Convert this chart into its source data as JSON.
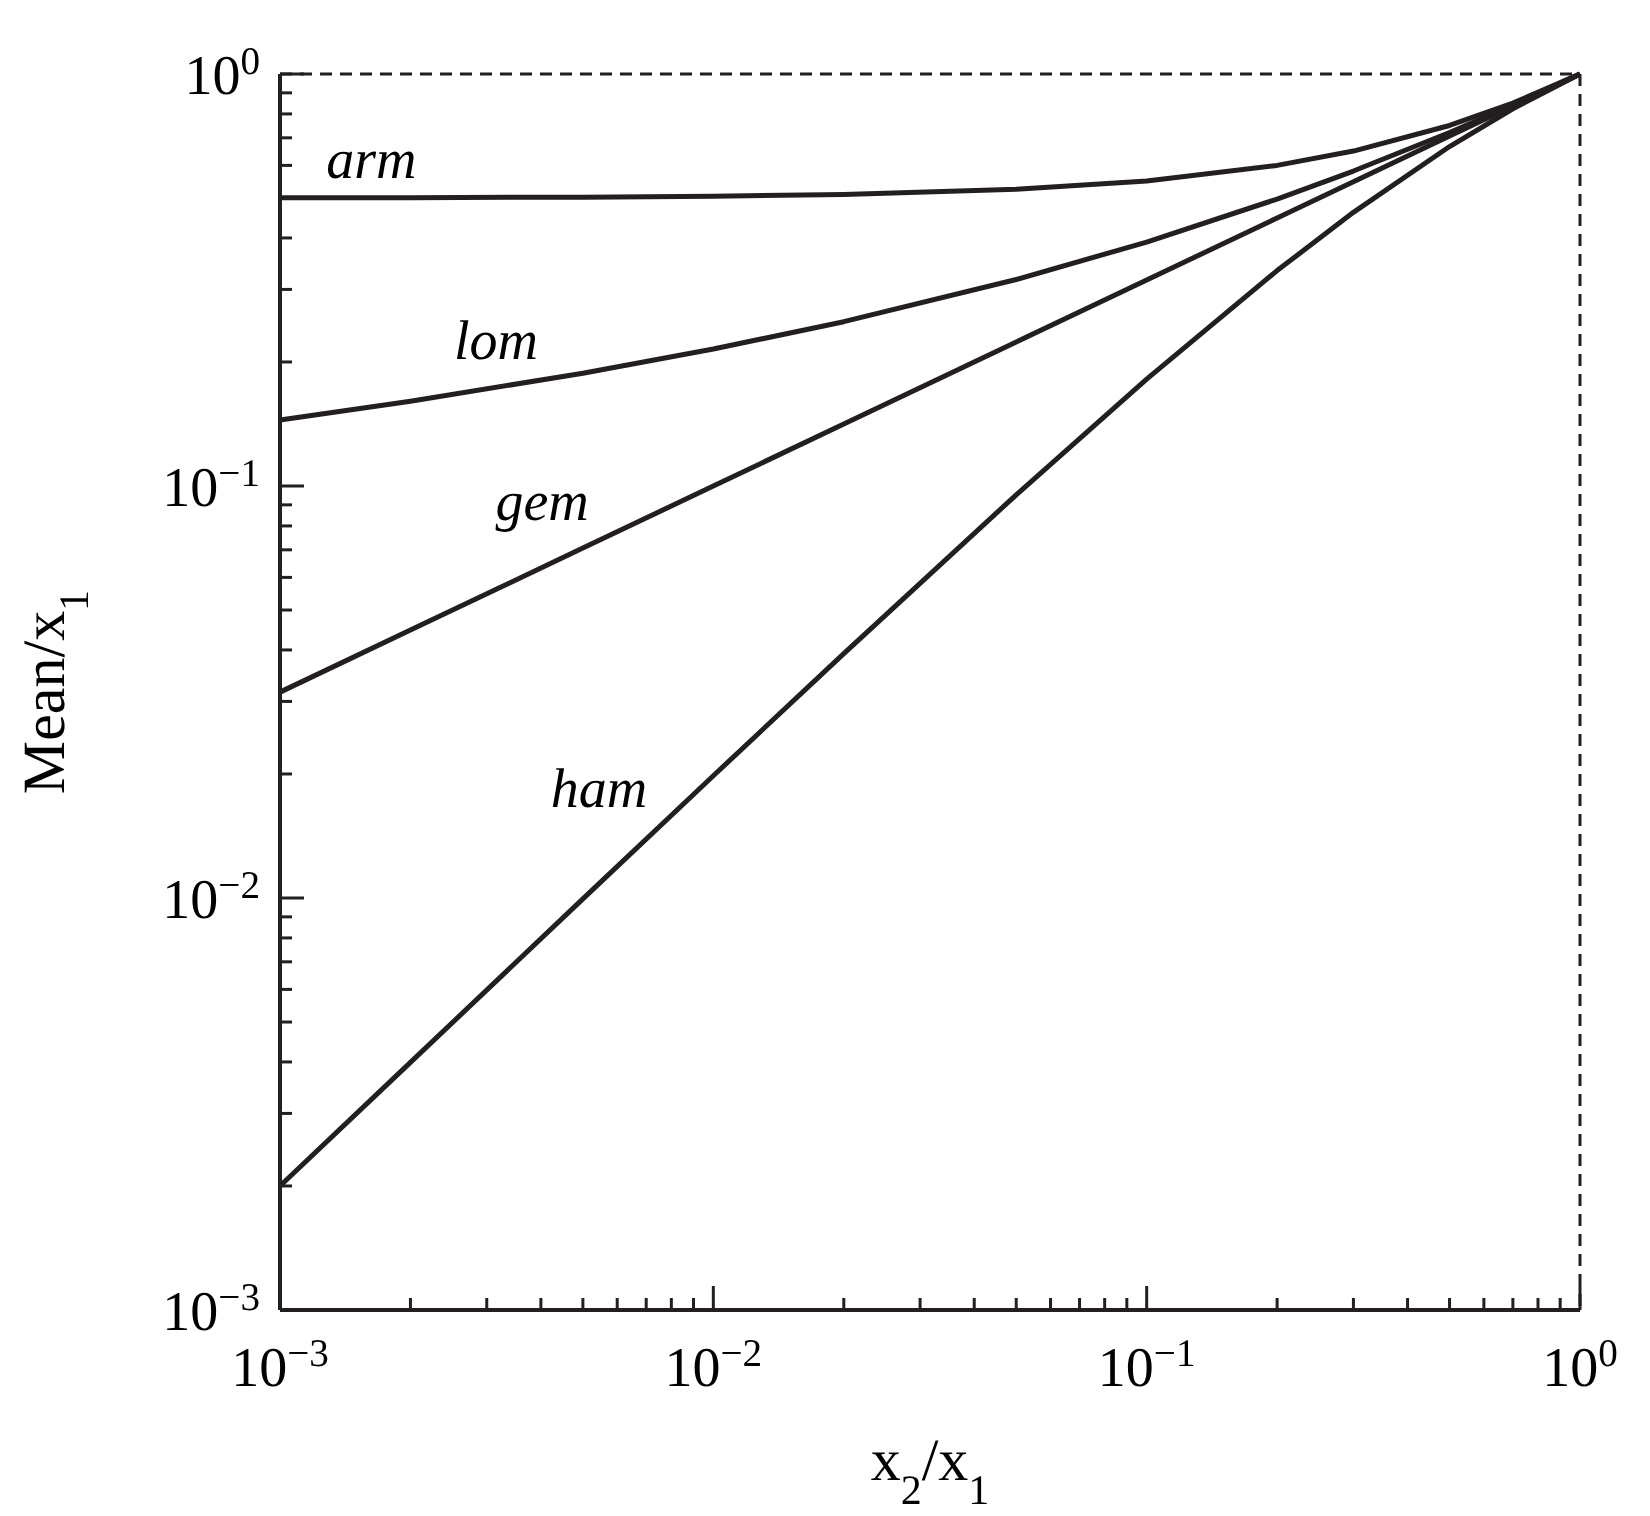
{
  "chart_data": {
    "type": "line",
    "xlabel": "x$_{2}$/x$_{1}$",
    "ylabel": "Mean/x$_{1}$",
    "log": "xy",
    "grid": false,
    "marker": "none",
    "line_style": "solid",
    "xlim": [
      0.001,
      1
    ],
    "ylim": [
      0.001,
      1
    ],
    "xticks": [
      {
        "value": 0.001,
        "label": "10$^{−3}$"
      },
      {
        "value": 0.002,
        "label": null
      },
      {
        "value": 0.003,
        "label": null
      },
      {
        "value": 0.004,
        "label": null
      },
      {
        "value": 0.005,
        "label": null
      },
      {
        "value": 0.006,
        "label": null
      },
      {
        "value": 0.007,
        "label": null
      },
      {
        "value": 0.008,
        "label": null
      },
      {
        "value": 0.009,
        "label": null
      },
      {
        "value": 0.01,
        "label": "10$^{−2}$"
      },
      {
        "value": 0.02,
        "label": null
      },
      {
        "value": 0.03,
        "label": null
      },
      {
        "value": 0.04,
        "label": null
      },
      {
        "value": 0.05,
        "label": null
      },
      {
        "value": 0.06,
        "label": null
      },
      {
        "value": 0.07,
        "label": null
      },
      {
        "value": 0.08,
        "label": null
      },
      {
        "value": 0.09,
        "label": null
      },
      {
        "value": 0.1,
        "label": "10$^{−1}$"
      },
      {
        "value": 0.2,
        "label": null
      },
      {
        "value": 0.3,
        "label": null
      },
      {
        "value": 0.4,
        "label": null
      },
      {
        "value": 0.5,
        "label": null
      },
      {
        "value": 0.6,
        "label": null
      },
      {
        "value": 0.7,
        "label": null
      },
      {
        "value": 0.8,
        "label": null
      },
      {
        "value": 0.9,
        "label": null
      },
      {
        "value": 1,
        "label": "10$^{0}$"
      }
    ],
    "yticks": [
      {
        "value": 0.001,
        "label": "10$^{−3}$"
      },
      {
        "value": 0.002,
        "label": null
      },
      {
        "value": 0.003,
        "label": null
      },
      {
        "value": 0.004,
        "label": null
      },
      {
        "value": 0.005,
        "label": null
      },
      {
        "value": 0.006,
        "label": null
      },
      {
        "value": 0.007,
        "label": null
      },
      {
        "value": 0.008,
        "label": null
      },
      {
        "value": 0.009,
        "label": null
      },
      {
        "value": 0.01,
        "label": "10$^{−2}$"
      },
      {
        "value": 0.02,
        "label": null
      },
      {
        "value": 0.03,
        "label": null
      },
      {
        "value": 0.04,
        "label": null
      },
      {
        "value": 0.05,
        "label": null
      },
      {
        "value": 0.06,
        "label": null
      },
      {
        "value": 0.07,
        "label": null
      },
      {
        "value": 0.08,
        "label": null
      },
      {
        "value": 0.09,
        "label": null
      },
      {
        "value": 0.1,
        "label": "10$^{−1}$"
      },
      {
        "value": 0.2,
        "label": null
      },
      {
        "value": 0.3,
        "label": null
      },
      {
        "value": 0.4,
        "label": null
      },
      {
        "value": 0.5,
        "label": null
      },
      {
        "value": 0.6,
        "label": null
      },
      {
        "value": 0.7,
        "label": null
      },
      {
        "value": 0.8,
        "label": null
      },
      {
        "value": 0.9,
        "label": null
      },
      {
        "value": 1,
        "label": "10$^{0}$"
      }
    ],
    "x": [
      0.001,
      0.002,
      0.005,
      0.01,
      0.02,
      0.05,
      0.1,
      0.2,
      0.3,
      0.5,
      0.7,
      1
    ],
    "series": [
      {
        "name": "arm",
        "color": "#231f20",
        "values": [
          0.5005,
          0.501,
          0.5025,
          0.505,
          0.51,
          0.525,
          0.55,
          0.6,
          0.65,
          0.75,
          0.85,
          1
        ]
      },
      {
        "name": "lom",
        "color": "#231f20",
        "values": [
          0.1446,
          0.1606,
          0.1878,
          0.215,
          0.2505,
          0.3171,
          0.3909,
          0.4971,
          0.5814,
          0.7213,
          0.8411,
          1
        ]
      },
      {
        "name": "gem",
        "color": "#231f20",
        "values": [
          0.0316,
          0.0447,
          0.0707,
          0.1,
          0.1414,
          0.2236,
          0.3162,
          0.4472,
          0.5477,
          0.7071,
          0.8367,
          1
        ]
      },
      {
        "name": "ham",
        "color": "#231f20",
        "values": [
          0.002,
          0.00399,
          0.00995,
          0.0198,
          0.0392,
          0.0952,
          0.1818,
          0.3333,
          0.4615,
          0.6667,
          0.8235,
          1
        ]
      }
    ]
  }
}
